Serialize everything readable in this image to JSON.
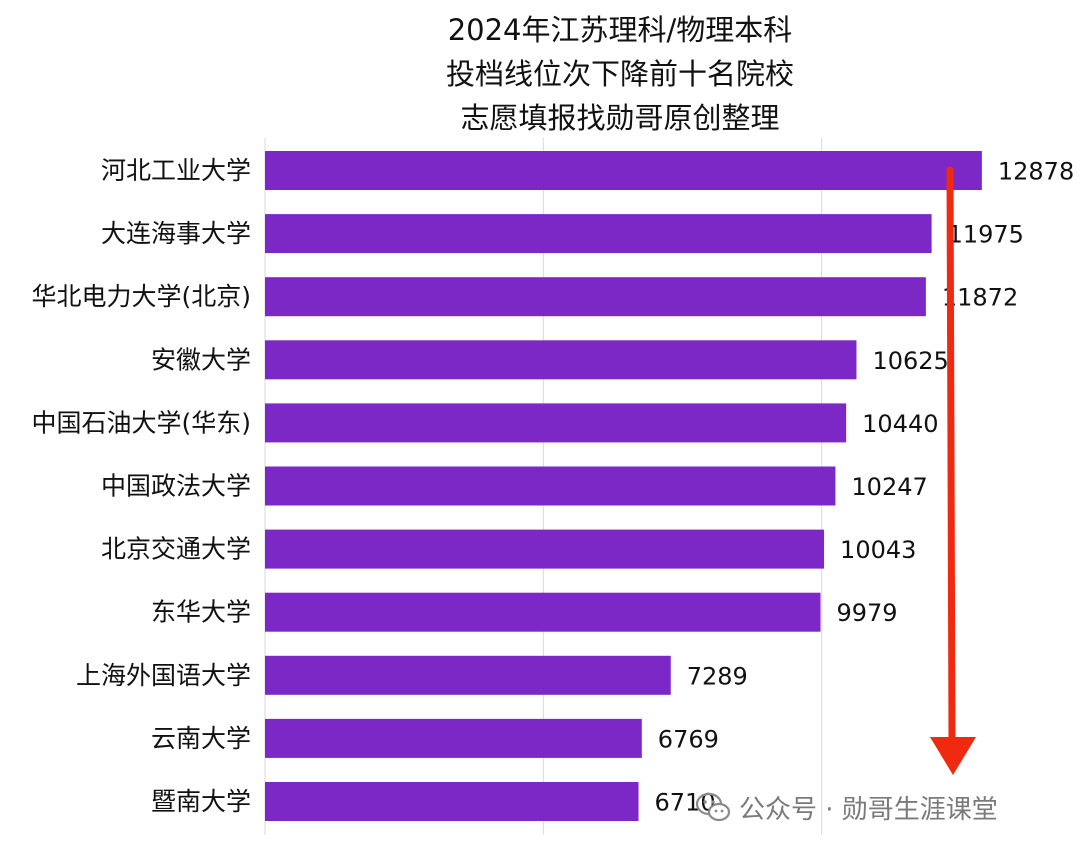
{
  "chart_data": {
    "type": "bar",
    "orientation": "horizontal",
    "title_lines": [
      "2024年江苏理科/物理本科",
      "投档线位次下降前十名院校",
      "志愿填报找勋哥原创整理"
    ],
    "categories": [
      "河北工业大学",
      "大连海事大学",
      "华北电力大学(北京)",
      "安徽大学",
      "中国石油大学(华东)",
      "中国政法大学",
      "北京交通大学",
      "东华大学",
      "上海外国语大学",
      "云南大学",
      "暨南大学"
    ],
    "values": [
      12878,
      11975,
      11872,
      10625,
      10440,
      10247,
      10043,
      9979,
      7289,
      6769,
      6710
    ],
    "xlim": [
      0,
      15000
    ],
    "grid": true,
    "bar_color": "#7b28c6",
    "arrow_color": "#f02a10"
  },
  "watermark": {
    "text": "公众号 · 勋哥生涯课堂",
    "icon": "wechat-icon"
  }
}
